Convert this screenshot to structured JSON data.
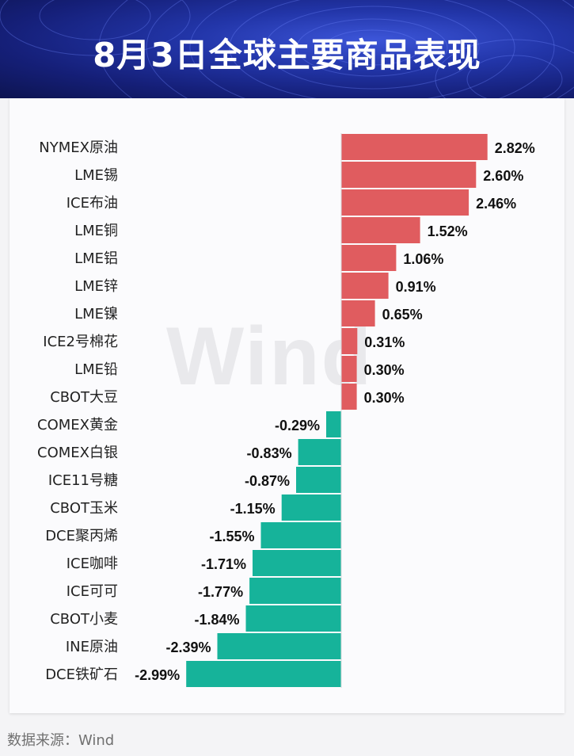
{
  "header": {
    "title": "8月3日全球主要商品表现"
  },
  "watermark": "Wind",
  "source": "数据来源：Wind",
  "colors": {
    "positive": "#e05c5f",
    "negative": "#16b39a"
  },
  "chart_data": {
    "type": "bar",
    "orientation": "horizontal",
    "title": "8月3日全球主要商品表现",
    "unit": "%",
    "categories": [
      "NYMEX原油",
      "LME锡",
      "ICE布油",
      "LME铜",
      "LME铝",
      "LME锌",
      "LME镍",
      "ICE2号棉花",
      "LME铅",
      "CBOT大豆",
      "COMEX黄金",
      "COMEX白银",
      "ICE11号糖",
      "CBOT玉米",
      "DCE聚丙烯",
      "ICE咖啡",
      "ICE可可",
      "CBOT小麦",
      "INE原油",
      "DCE铁矿石"
    ],
    "values": [
      2.82,
      2.6,
      2.46,
      1.52,
      1.06,
      0.91,
      0.65,
      0.31,
      0.3,
      0.3,
      -0.29,
      -0.83,
      -0.87,
      -1.15,
      -1.55,
      -1.71,
      -1.77,
      -1.84,
      -2.39,
      -2.99
    ],
    "labels": [
      "2.82%",
      "2.60%",
      "2.46%",
      "1.52%",
      "1.06%",
      "0.91%",
      "0.65%",
      "0.31%",
      "0.30%",
      "0.30%",
      "-0.29%",
      "-0.83%",
      "-0.87%",
      "-1.15%",
      "-1.55%",
      "-1.71%",
      "-1.77%",
      "-1.84%",
      "-2.39%",
      "-2.99%"
    ]
  }
}
